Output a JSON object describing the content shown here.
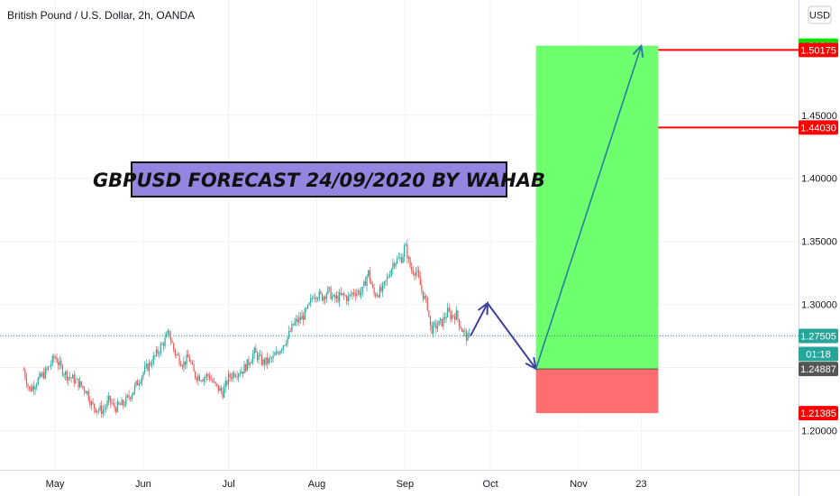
{
  "header": {
    "symbol_title": "British Pound / U.S. Dollar, 2h, OANDA",
    "currency_button": "USD"
  },
  "annotation": {
    "banner_text": "GBPUSD FORECAST 24/09/2020 BY WAHAB"
  },
  "colors": {
    "up_candle": "#26a69a",
    "down_candle": "#ef5350",
    "target_zone": "#66ff66",
    "stop_zone": "#ff6666",
    "arrow": "#3f3f9f",
    "arrow_long": "#2a7ca3",
    "level_line": "#ff0000",
    "banner_bg": "#9485e0",
    "last_price": "#26a69a",
    "entry_price_bg": "#555555"
  },
  "chart_data": {
    "type": "candlestick",
    "title": "British Pound / U.S. Dollar, 2h, OANDA",
    "x_ticks": [
      "May",
      "Jun",
      "Jul",
      "Aug",
      "Sep",
      "Oct",
      "Nov",
      "23"
    ],
    "y_ticks": [
      "1.20000",
      "1.25000",
      "1.30000",
      "1.35000",
      "1.40000",
      "1.45000"
    ],
    "ylim": [
      1.16,
      1.52
    ],
    "series": [
      {
        "kind": "close_path",
        "points": [
          [
            "2020-04-20",
            1.248
          ],
          [
            "2020-04-22",
            1.232
          ],
          [
            "2020-04-25",
            1.24
          ],
          [
            "2020-04-28",
            1.247
          ],
          [
            "2020-05-01",
            1.259
          ],
          [
            "2020-05-03",
            1.25
          ],
          [
            "2020-05-05",
            1.244
          ],
          [
            "2020-05-08",
            1.24
          ],
          [
            "2020-05-12",
            1.232
          ],
          [
            "2020-05-14",
            1.22
          ],
          [
            "2020-05-16",
            1.217
          ],
          [
            "2020-05-18",
            1.216
          ],
          [
            "2020-05-20",
            1.224
          ],
          [
            "2020-05-22",
            1.218
          ],
          [
            "2020-05-25",
            1.221
          ],
          [
            "2020-05-28",
            1.23
          ],
          [
            "2020-05-30",
            1.238
          ],
          [
            "2020-06-01",
            1.246
          ],
          [
            "2020-06-04",
            1.255
          ],
          [
            "2020-06-06",
            1.262
          ],
          [
            "2020-06-09",
            1.273
          ],
          [
            "2020-06-10",
            1.278
          ],
          [
            "2020-06-12",
            1.262
          ],
          [
            "2020-06-15",
            1.253
          ],
          [
            "2020-06-17",
            1.258
          ],
          [
            "2020-06-19",
            1.244
          ],
          [
            "2020-06-22",
            1.242
          ],
          [
            "2020-06-24",
            1.244
          ],
          [
            "2020-06-26",
            1.236
          ],
          [
            "2020-06-29",
            1.23
          ],
          [
            "2020-07-01",
            1.242
          ],
          [
            "2020-07-03",
            1.246
          ],
          [
            "2020-07-06",
            1.248
          ],
          [
            "2020-07-08",
            1.254
          ],
          [
            "2020-07-10",
            1.262
          ],
          [
            "2020-07-13",
            1.254
          ],
          [
            "2020-07-15",
            1.255
          ],
          [
            "2020-07-17",
            1.258
          ],
          [
            "2020-07-20",
            1.268
          ],
          [
            "2020-07-22",
            1.275
          ],
          [
            "2020-07-24",
            1.285
          ],
          [
            "2020-07-27",
            1.29
          ],
          [
            "2020-07-29",
            1.297
          ],
          [
            "2020-07-31",
            1.309
          ],
          [
            "2020-08-03",
            1.306
          ],
          [
            "2020-08-05",
            1.311
          ],
          [
            "2020-08-07",
            1.304
          ],
          [
            "2020-08-10",
            1.307
          ],
          [
            "2020-08-12",
            1.305
          ],
          [
            "2020-08-14",
            1.31
          ],
          [
            "2020-08-17",
            1.31
          ],
          [
            "2020-08-19",
            1.326
          ],
          [
            "2020-08-21",
            1.308
          ],
          [
            "2020-08-24",
            1.311
          ],
          [
            "2020-08-26",
            1.322
          ],
          [
            "2020-08-28",
            1.334
          ],
          [
            "2020-08-31",
            1.337
          ],
          [
            "2020-09-01",
            1.347
          ],
          [
            "2020-09-03",
            1.328
          ],
          [
            "2020-09-05",
            1.326
          ],
          [
            "2020-09-07",
            1.31
          ],
          [
            "2020-09-09",
            1.298
          ],
          [
            "2020-09-10",
            1.28
          ],
          [
            "2020-09-12",
            1.283
          ],
          [
            "2020-09-14",
            1.286
          ],
          [
            "2020-09-16",
            1.294
          ],
          [
            "2020-09-17",
            1.291
          ],
          [
            "2020-09-19",
            1.292
          ],
          [
            "2020-09-21",
            1.28
          ],
          [
            "2020-09-23",
            1.273
          ],
          [
            "2020-09-24",
            1.275
          ]
        ]
      },
      {
        "kind": "forecast_path",
        "points": [
          [
            "2020-09-24",
            1.275
          ],
          [
            "2020-09-30",
            1.301
          ],
          [
            "2020-10-17",
            1.249
          ],
          [
            "2020-11-23",
            1.505
          ]
        ]
      }
    ],
    "zones": [
      {
        "name": "target",
        "from": 1.24887,
        "to": 1.50513,
        "x_from": "2020-10-17",
        "x_to": "2020-11-29"
      },
      {
        "name": "stop",
        "from": 1.21385,
        "to": 1.24887,
        "x_from": "2020-10-17",
        "x_to": "2020-11-29"
      }
    ],
    "levels": [
      1.50175,
      1.4403
    ],
    "price_labels": [
      {
        "text": "1.50513",
        "value": 1.50513,
        "style": "green-top"
      },
      {
        "text": "1.50175",
        "value": 1.50175,
        "style": "red"
      },
      {
        "text": "1.44030",
        "value": 1.4403,
        "style": "red"
      },
      {
        "text": "1.27505",
        "value": 1.27505,
        "style": "last"
      },
      {
        "text": "01:18",
        "value": 1.2608,
        "style": "countdown"
      },
      {
        "text": "1.24887",
        "value": 1.24887,
        "style": "dark"
      },
      {
        "text": "1.21385",
        "value": 1.21385,
        "style": "red"
      }
    ],
    "last_price": 1.27505
  }
}
